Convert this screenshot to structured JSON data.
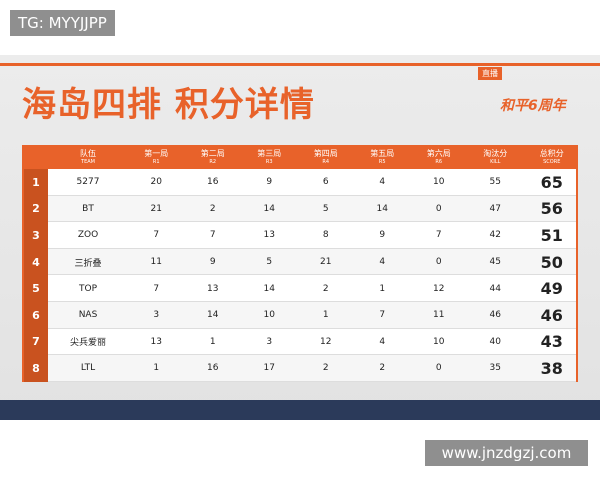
{
  "watermark": "TG: MYYJJPP",
  "title": "海岛四排 积分详情",
  "badge": "直播",
  "logo": "和平6周年",
  "table": {
    "headers": [
      {
        "zh": "队伍",
        "en": "TEAM"
      },
      {
        "zh": "第一局",
        "en": "R1"
      },
      {
        "zh": "第二局",
        "en": "R2"
      },
      {
        "zh": "第三局",
        "en": "R3"
      },
      {
        "zh": "第四局",
        "en": "R4"
      },
      {
        "zh": "第五局",
        "en": "R5"
      },
      {
        "zh": "第六局",
        "en": "R6"
      },
      {
        "zh": "淘汰分",
        "en": "KILL"
      },
      {
        "zh": "总积分",
        "en": "SCORE"
      }
    ],
    "rows": [
      [
        1,
        "5277",
        20,
        16,
        9,
        6,
        4,
        10,
        55,
        65
      ],
      [
        2,
        "BT",
        21,
        2,
        14,
        5,
        14,
        0,
        47,
        56
      ],
      [
        3,
        "ZOO",
        7,
        7,
        13,
        8,
        9,
        7,
        42,
        51
      ],
      [
        4,
        "三折叠",
        11,
        9,
        5,
        21,
        4,
        0,
        45,
        50
      ],
      [
        5,
        "TOP",
        7,
        13,
        14,
        2,
        1,
        12,
        44,
        49
      ],
      [
        6,
        "NAS",
        3,
        14,
        10,
        1,
        7,
        11,
        46,
        46
      ],
      [
        7,
        "尖兵爱丽",
        13,
        1,
        3,
        12,
        4,
        10,
        40,
        43
      ],
      [
        8,
        "LTL",
        1,
        16,
        17,
        2,
        2,
        0,
        35,
        38
      ]
    ]
  },
  "footer": "www.jnzdgzj.com"
}
